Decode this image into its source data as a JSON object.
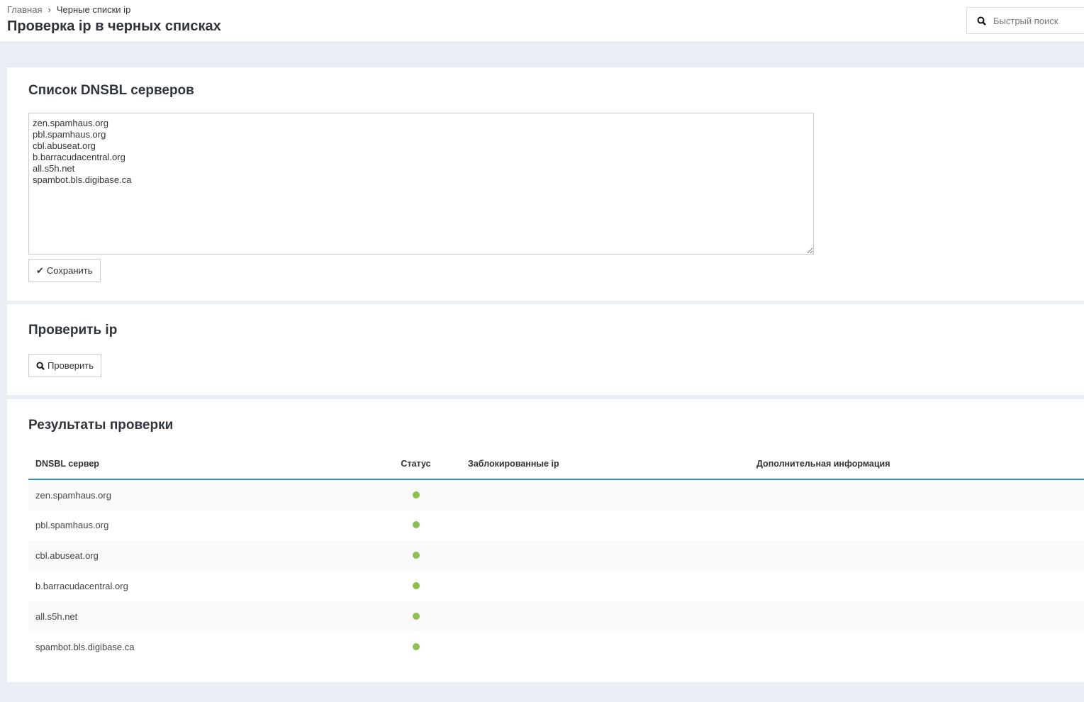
{
  "header": {
    "breadcrumb": [
      "Главная",
      "Черные списки ip"
    ],
    "title": "Проверка ip в черных списках",
    "search_placeholder": "Быстрый поиск"
  },
  "dnsbl": {
    "title": "Список DNSBL серверов",
    "servers_text": "zen.spamhaus.org\npbl.spamhaus.org\ncbl.abuseat.org\nb.barracudacentral.org\nall.s5h.net\nspambot.bls.digibase.ca",
    "save_label": "Сохранить"
  },
  "check": {
    "title": "Проверить ip",
    "check_label": "Проверить"
  },
  "results": {
    "title": "Результаты проверки",
    "columns": [
      "DNSBL сервер",
      "Статус",
      "Заблокированные ip",
      "Дополнительная информация"
    ],
    "rows": [
      {
        "server": "zen.spamhaus.org",
        "status": "ok",
        "blocked": "",
        "info": ""
      },
      {
        "server": "pbl.spamhaus.org",
        "status": "ok",
        "blocked": "",
        "info": ""
      },
      {
        "server": "cbl.abuseat.org",
        "status": "ok",
        "blocked": "",
        "info": ""
      },
      {
        "server": "b.barracudacentral.org",
        "status": "ok",
        "blocked": "",
        "info": ""
      },
      {
        "server": "all.s5h.net",
        "status": "ok",
        "blocked": "",
        "info": ""
      },
      {
        "server": "spambot.bls.digibase.ca",
        "status": "ok",
        "blocked": "",
        "info": ""
      }
    ]
  },
  "colors": {
    "status_ok": "#8cc152",
    "accent": "#3c8dbc"
  }
}
